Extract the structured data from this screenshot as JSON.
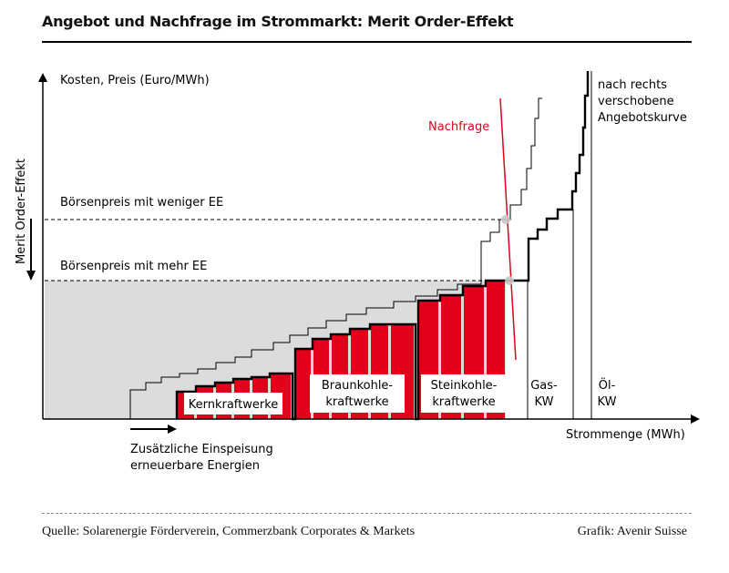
{
  "title": "Angebot und Nachfrage im Strommarkt: Merit Order-Effekt",
  "footer": {
    "source": "Quelle: Solarenergie Förderverein, Commerzbank Corporates & Markets",
    "credit": "Grafik: Avenir Suisse"
  },
  "colors": {
    "plants": "#e3001b",
    "demand": "#e3001b",
    "shaded_area": "#dcdcdc",
    "lines": "#000000"
  },
  "chart_data": {
    "type": "area",
    "ylabel": "Kosten, Preis (Euro/MWh)",
    "xlabel": "Strommenge (MWh)",
    "side_label": "Merit Order-Effekt",
    "price_labels": {
      "less_ee": "Börsenpreis mit weniger EE",
      "more_ee": "Börsenpreis mit mehr EE"
    },
    "demand_label": "Nachfrage",
    "shifted_supply_label": [
      "nach rechts",
      "verschobene",
      "Angebotskurve"
    ],
    "ee_label": [
      "Zusätzliche Einspeisung",
      "erneuerbare Energien"
    ],
    "plant_groups": [
      {
        "name": "Kernkraftwerke",
        "label_lines": [
          "Kernkraftwerke"
        ]
      },
      {
        "name": "Braunkohlekraftwerke",
        "label_lines": [
          "Braunkohle-",
          "kraftwerke"
        ]
      },
      {
        "name": "Steinkohlekraftwerke",
        "label_lines": [
          "Steinkohle-",
          "kraftwerke"
        ]
      },
      {
        "name": "Gas-KW",
        "label_lines": [
          "Gas-",
          "KW"
        ]
      },
      {
        "name": "Öl-KW",
        "label_lines": [
          "Öl-",
          "KW"
        ]
      }
    ]
  }
}
